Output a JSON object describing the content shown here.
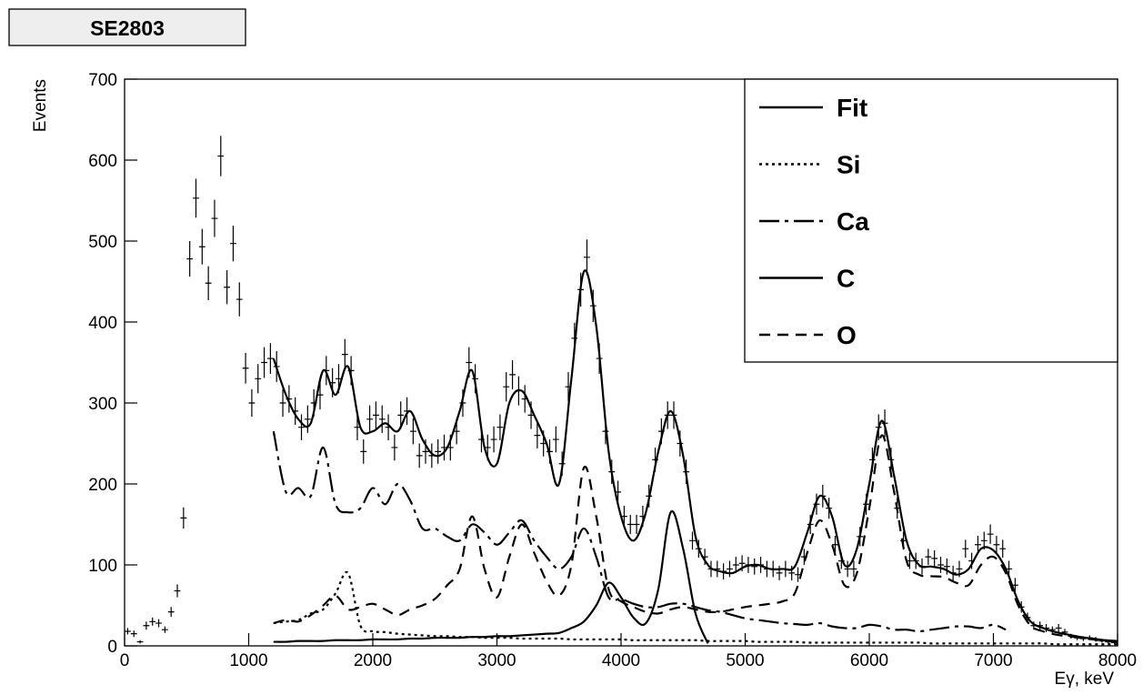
{
  "chart_data": {
    "type": "line",
    "title": "SE2803",
    "x_label": "Eγ, keV",
    "y_label": "Events",
    "xlim": [
      0,
      8000
    ],
    "xticks": [
      0,
      1000,
      2000,
      3000,
      4000,
      5000,
      6000,
      7000,
      8000
    ],
    "ylim": [
      0,
      700
    ],
    "yticks": [
      0,
      100,
      200,
      300,
      400,
      500,
      600,
      700
    ],
    "legend": "upper right",
    "points": {
      "color": "#000000",
      "xerr": 25,
      "x": [
        25,
        75,
        125,
        175,
        225,
        275,
        325,
        375,
        425,
        475,
        525,
        575,
        625,
        675,
        725,
        775,
        825,
        875,
        925,
        975,
        1025,
        1075,
        1125,
        1175,
        1225,
        1275,
        1325,
        1375,
        1425,
        1475,
        1525,
        1575,
        1625,
        1675,
        1725,
        1775,
        1825,
        1875,
        1925,
        1975,
        2025,
        2075,
        2125,
        2175,
        2225,
        2275,
        2325,
        2375,
        2425,
        2475,
        2525,
        2575,
        2625,
        2675,
        2725,
        2775,
        2825,
        2875,
        2925,
        2975,
        3025,
        3075,
        3125,
        3175,
        3225,
        3275,
        3325,
        3375,
        3425,
        3475,
        3525,
        3575,
        3625,
        3675,
        3725,
        3775,
        3825,
        3875,
        3925,
        3975,
        4025,
        4075,
        4125,
        4175,
        4225,
        4275,
        4325,
        4375,
        4425,
        4475,
        4525,
        4575,
        4625,
        4675,
        4725,
        4775,
        4825,
        4875,
        4925,
        4975,
        5025,
        5075,
        5125,
        5175,
        5225,
        5275,
        5325,
        5375,
        5425,
        5475,
        5525,
        5575,
        5625,
        5675,
        5725,
        5775,
        5825,
        5875,
        5925,
        5975,
        6025,
        6075,
        6125,
        6175,
        6225,
        6275,
        6325,
        6375,
        6425,
        6475,
        6525,
        6575,
        6625,
        6675,
        6725,
        6775,
        6825,
        6875,
        6925,
        6975,
        7025,
        7075,
        7125,
        7175,
        7225,
        7275,
        7325,
        7375,
        7425,
        7475,
        7525,
        7575,
        7625,
        7675,
        7725,
        7775,
        7825,
        7875,
        7925,
        7975
      ],
      "values": [
        18,
        15,
        5,
        25,
        30,
        28,
        20,
        42,
        68,
        158,
        478,
        553,
        493,
        448,
        528,
        605,
        443,
        497,
        428,
        343,
        300,
        330,
        350,
        355,
        345,
        300,
        305,
        290,
        270,
        280,
        300,
        310,
        340,
        325,
        330,
        360,
        340,
        270,
        240,
        280,
        285,
        280,
        270,
        245,
        285,
        290,
        265,
        235,
        240,
        235,
        240,
        245,
        245,
        265,
        300,
        350,
        330,
        255,
        245,
        255,
        270,
        320,
        335,
        315,
        305,
        285,
        260,
        250,
        240,
        255,
        225,
        320,
        380,
        440,
        480,
        420,
        355,
        265,
        215,
        190,
        160,
        150,
        150,
        160,
        185,
        230,
        265,
        285,
        285,
        250,
        215,
        130,
        120,
        110,
        95,
        95,
        92,
        95,
        100,
        102,
        100,
        98,
        100,
        95,
        95,
        90,
        95,
        90,
        88,
        110,
        150,
        175,
        185,
        170,
        125,
        105,
        95,
        95,
        135,
        175,
        230,
        270,
        275,
        230,
        170,
        130,
        105,
        105,
        98,
        110,
        108,
        100,
        98,
        90,
        95,
        120,
        105,
        125,
        130,
        138,
        125,
        120,
        95,
        75,
        48,
        35,
        25,
        25,
        22,
        20,
        22,
        17,
        12,
        10,
        9,
        10,
        8,
        6,
        5,
        4
      ],
      "errors": [
        4,
        4,
        2,
        5,
        5,
        5,
        4,
        6,
        8,
        13,
        22,
        24,
        22,
        21,
        23,
        25,
        21,
        22,
        21,
        19,
        17,
        18,
        19,
        19,
        19,
        17,
        17,
        17,
        16,
        17,
        17,
        18,
        18,
        18,
        18,
        19,
        18,
        16,
        15,
        17,
        17,
        17,
        16,
        16,
        17,
        17,
        16,
        15,
        15,
        15,
        15,
        16,
        16,
        16,
        17,
        19,
        18,
        16,
        16,
        16,
        16,
        18,
        18,
        18,
        17,
        17,
        16,
        16,
        15,
        16,
        15,
        18,
        19,
        21,
        22,
        20,
        19,
        16,
        15,
        14,
        13,
        12,
        12,
        13,
        14,
        15,
        16,
        17,
        17,
        16,
        15,
        11,
        11,
        10,
        10,
        10,
        10,
        10,
        10,
        10,
        10,
        10,
        10,
        10,
        10,
        9,
        10,
        9,
        9,
        10,
        12,
        13,
        14,
        13,
        11,
        10,
        10,
        10,
        12,
        13,
        15,
        16,
        17,
        15,
        13,
        11,
        10,
        10,
        10,
        10,
        10,
        10,
        10,
        9,
        10,
        11,
        10,
        11,
        11,
        12,
        11,
        11,
        10,
        9,
        7,
        6,
        5,
        5,
        5,
        4,
        5,
        4,
        3,
        3,
        3,
        3,
        3,
        2,
        2,
        2
      ]
    },
    "curve_x": [
      1200,
      1300,
      1400,
      1500,
      1600,
      1700,
      1800,
      1900,
      2000,
      2100,
      2200,
      2300,
      2400,
      2500,
      2600,
      2700,
      2800,
      2900,
      3000,
      3100,
      3200,
      3300,
      3400,
      3500,
      3600,
      3700,
      3800,
      3900,
      4000,
      4100,
      4200,
      4300,
      4400,
      4500,
      4600,
      4700,
      4800,
      4900,
      5000,
      5100,
      5200,
      5300,
      5400,
      5500,
      5600,
      5700,
      5800,
      5900,
      6000,
      6100,
      6200,
      6300,
      6400,
      6500,
      6600,
      6700,
      6800,
      6900,
      7000,
      7100,
      7200,
      7300,
      7400,
      7500,
      7600,
      7700,
      7800,
      7900,
      8000
    ],
    "series": [
      {
        "name": "Fit",
        "color": "#000000",
        "line_style": "solid",
        "values": [
          355,
          310,
          280,
          275,
          340,
          310,
          345,
          270,
          265,
          275,
          265,
          290,
          255,
          235,
          245,
          290,
          340,
          245,
          225,
          300,
          315,
          285,
          250,
          200,
          330,
          462,
          395,
          240,
          160,
          130,
          165,
          240,
          290,
          235,
          135,
          100,
          92,
          90,
          98,
          100,
          95,
          95,
          98,
          140,
          185,
          160,
          100,
          120,
          200,
          278,
          210,
          130,
          100,
          98,
          95,
          88,
          95,
          120,
          118,
          95,
          55,
          30,
          22,
          17,
          14,
          11,
          9,
          7,
          6
        ]
      },
      {
        "name": "Si",
        "color": "#000000",
        "line_style": "dotted",
        "values": [
          28,
          30,
          32,
          40,
          45,
          65,
          90,
          25,
          18,
          17,
          15,
          14,
          13,
          12,
          12,
          11,
          11,
          10,
          10,
          10,
          9,
          9,
          9,
          9,
          8,
          8,
          8,
          8,
          8,
          7,
          7,
          7,
          7,
          7,
          7,
          6,
          6,
          6,
          6,
          5,
          5,
          5,
          5,
          4,
          4,
          4,
          4,
          4,
          4,
          4,
          4,
          4,
          4,
          3,
          3,
          3,
          3,
          3,
          3,
          3,
          3,
          3,
          3,
          2,
          2,
          2,
          2,
          2,
          2
        ]
      },
      {
        "name": "Ca",
        "color": "#000000",
        "line_style": "dash-dot",
        "values": [
          265,
          190,
          195,
          185,
          245,
          175,
          165,
          170,
          195,
          175,
          200,
          180,
          145,
          145,
          135,
          130,
          150,
          140,
          125,
          140,
          155,
          130,
          110,
          95,
          110,
          145,
          110,
          60,
          58,
          52,
          48,
          48,
          52,
          52,
          48,
          44,
          42,
          38,
          34,
          32,
          30,
          28,
          27,
          26,
          28,
          24,
          22,
          22,
          26,
          24,
          20,
          20,
          18,
          20,
          22,
          24,
          24,
          22,
          26,
          20,
          null,
          null,
          null,
          null,
          null,
          null,
          null,
          null,
          null
        ]
      },
      {
        "name": "C",
        "color": "#000000",
        "line_style": "solid",
        "values": [
          5,
          5,
          6,
          6,
          6,
          7,
          7,
          7,
          8,
          8,
          8,
          9,
          9,
          10,
          10,
          10,
          11,
          11,
          12,
          12,
          13,
          14,
          15,
          16,
          22,
          30,
          50,
          78,
          60,
          35,
          28,
          70,
          165,
          120,
          40,
          3,
          null,
          null,
          null,
          null,
          null,
          null,
          null,
          null,
          null,
          null,
          null,
          null,
          null,
          null,
          null,
          null,
          null,
          null,
          null,
          null,
          null,
          null,
          null,
          null,
          null,
          null,
          null,
          null,
          null,
          null,
          null,
          null,
          null
        ]
      },
      {
        "name": "O",
        "color": "#000000",
        "line_style": "dashed",
        "values": [
          28,
          32,
          30,
          38,
          50,
          62,
          45,
          48,
          52,
          45,
          38,
          45,
          50,
          58,
          75,
          95,
          160,
          95,
          60,
          110,
          150,
          115,
          80,
          62,
          100,
          220,
          160,
          70,
          55,
          48,
          42,
          40,
          45,
          48,
          45,
          42,
          42,
          45,
          48,
          50,
          52,
          55,
          65,
          115,
          155,
          125,
          75,
          90,
          170,
          260,
          190,
          105,
          88,
          86,
          85,
          78,
          75,
          100,
          110,
          90,
          50,
          25,
          18,
          14,
          12,
          10,
          8,
          6,
          5
        ]
      }
    ]
  }
}
